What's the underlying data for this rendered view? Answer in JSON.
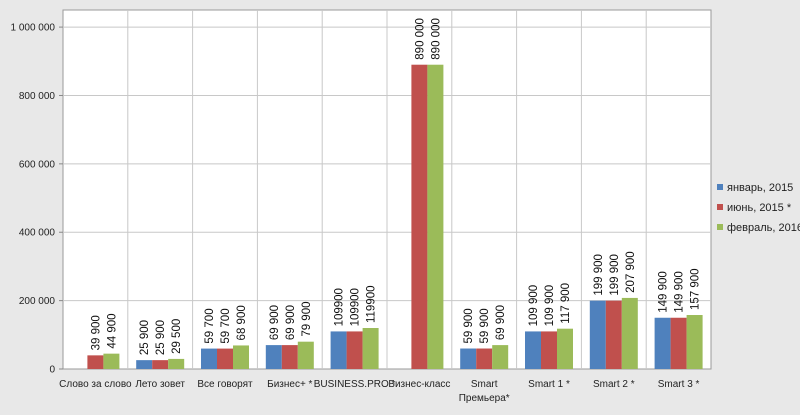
{
  "chart_data": {
    "type": "bar",
    "title": "",
    "xlabel": "",
    "ylabel": "",
    "ylim": [
      0,
      1050000
    ],
    "yticks": [
      0,
      200000,
      400000,
      600000,
      800000,
      1000000
    ],
    "ytick_labels": [
      "0",
      "200 000",
      "400 000",
      "600 000",
      "800 000",
      "1 000 000"
    ],
    "grid": true,
    "legend_position": "right",
    "categories": [
      "Слово за слово",
      "Лето зовет",
      "Все говорят",
      "Бизнес+ *",
      "BUSINESS.PRO *",
      "Бизнес-класс",
      "Smart Премьера*",
      "Smart 1 *",
      "Smart 2 *",
      "Smart 3 *"
    ],
    "category_lines": [
      [
        "Слово за слово"
      ],
      [
        "Лето зовет"
      ],
      [
        "Все говорят"
      ],
      [
        "Бизнес+ *"
      ],
      [
        "BUSINESS.PRO *"
      ],
      [
        "Бизнес-класс"
      ],
      [
        "Smart",
        "Премьера*"
      ],
      [
        "Smart 1 *"
      ],
      [
        "Smart 2 *"
      ],
      [
        "Smart 3 *"
      ]
    ],
    "series": [
      {
        "name": "январь, 2015",
        "color": "#4f81bd",
        "values": [
          null,
          25900,
          59700,
          69900,
          109900,
          null,
          59900,
          109900,
          199900,
          149900
        ],
        "labels": [
          "",
          "25 900",
          "59 700",
          "69 900",
          "109900",
          "",
          "59 900",
          "109 900",
          "199 900",
          "149 900"
        ]
      },
      {
        "name": "июнь, 2015 *",
        "color": "#c0504d",
        "values": [
          39900,
          25900,
          59700,
          69900,
          109900,
          890000,
          59900,
          109900,
          199900,
          149900
        ],
        "labels": [
          "39 900",
          "25 900",
          "59 700",
          "69 900",
          "109900",
          "890 000",
          "59 900",
          "109 900",
          "199 900",
          "149 900"
        ]
      },
      {
        "name": "февраль, 2016",
        "color": "#9bbb59",
        "values": [
          44900,
          29500,
          68900,
          79900,
          119900,
          890000,
          69900,
          117900,
          207900,
          157900
        ],
        "labels": [
          "44 900",
          "29 500",
          "68 900",
          "79 900",
          "119900",
          "890 000",
          "69 900",
          "117 900",
          "207 900",
          "157 900"
        ]
      }
    ]
  }
}
